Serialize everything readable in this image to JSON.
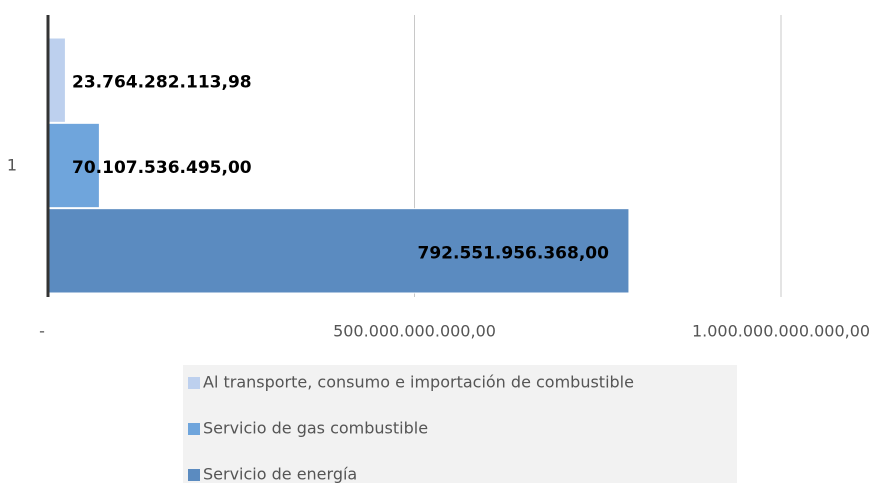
{
  "chart_data": {
    "type": "bar",
    "orientation": "horizontal",
    "categories": [
      "1"
    ],
    "series": [
      {
        "name": "Al transporte, consumo e importación de combustible",
        "color": "#bdd0ee",
        "values": [
          23764282113.98
        ],
        "value_labels": [
          "23.764.282.113,98"
        ]
      },
      {
        "name": "Servicio de gas combustible",
        "color": "#6fa5dc",
        "values": [
          70107536495
        ],
        "value_labels": [
          "70.107.536.495,00"
        ]
      },
      {
        "name": "Servicio de energía",
        "color": "#5b8bc0",
        "values": [
          792551956368
        ],
        "value_labels": [
          "792.551.956.368,00"
        ]
      }
    ],
    "xlim": [
      0,
      1000000000000
    ],
    "xticks": [
      {
        "value": 0,
        "label": "-"
      },
      {
        "value": 500000000000,
        "label": "500.000.000.000,00"
      },
      {
        "value": 1000000000000,
        "label": "1.000.000.000.000,00"
      }
    ],
    "grid": true,
    "legend": "bottom"
  }
}
